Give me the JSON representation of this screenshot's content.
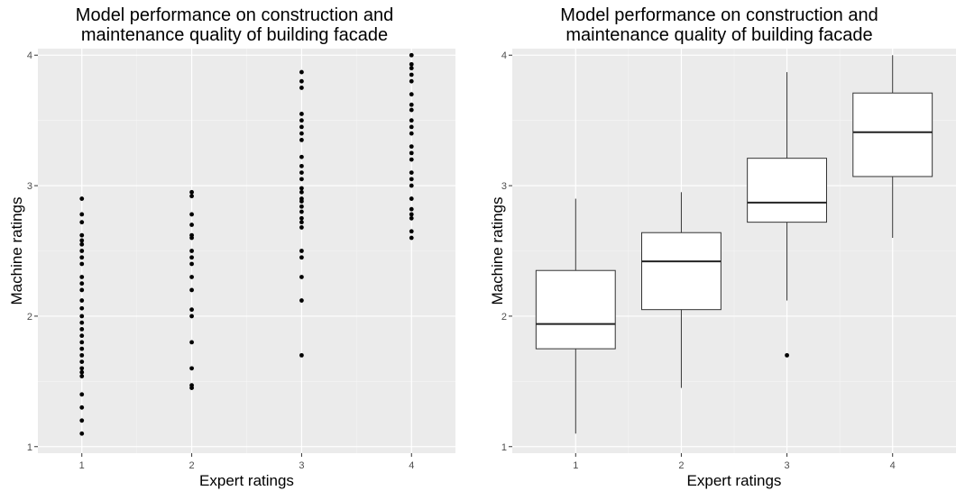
{
  "chart_data": [
    {
      "type": "scatter",
      "title": [
        "Model performance on construction and",
        "maintenance quality of building facade"
      ],
      "xlabel": "Expert ratings",
      "ylabel": "Machine ratings",
      "xlim": [
        0.6,
        4.4
      ],
      "ylim": [
        0.95,
        4.05
      ],
      "xticks": [
        1,
        2,
        3,
        4
      ],
      "yticks": [
        1,
        2,
        3,
        4
      ],
      "grid": true,
      "points": [
        [
          1,
          2.9
        ],
        [
          1,
          2.78
        ],
        [
          1,
          2.72
        ],
        [
          1,
          2.62
        ],
        [
          1,
          2.58
        ],
        [
          1,
          2.55
        ],
        [
          1,
          2.5
        ],
        [
          1,
          2.45
        ],
        [
          1,
          2.4
        ],
        [
          1,
          2.3
        ],
        [
          1,
          2.25
        ],
        [
          1,
          2.2
        ],
        [
          1,
          2.12
        ],
        [
          1,
          2.06
        ],
        [
          1,
          2.0
        ],
        [
          1,
          1.95
        ],
        [
          1,
          1.9
        ],
        [
          1,
          1.85
        ],
        [
          1,
          1.8
        ],
        [
          1,
          1.75
        ],
        [
          1,
          1.7
        ],
        [
          1,
          1.65
        ],
        [
          1,
          1.6
        ],
        [
          1,
          1.57
        ],
        [
          1,
          1.54
        ],
        [
          1,
          1.4
        ],
        [
          1,
          1.3
        ],
        [
          1,
          1.2
        ],
        [
          1,
          1.1
        ],
        [
          2,
          2.95
        ],
        [
          2,
          2.92
        ],
        [
          2,
          2.78
        ],
        [
          2,
          2.7
        ],
        [
          2,
          2.62
        ],
        [
          2,
          2.6
        ],
        [
          2,
          2.5
        ],
        [
          2,
          2.45
        ],
        [
          2,
          2.4
        ],
        [
          2,
          2.3
        ],
        [
          2,
          2.2
        ],
        [
          2,
          2.05
        ],
        [
          2,
          2.0
        ],
        [
          2,
          1.8
        ],
        [
          2,
          1.6
        ],
        [
          2,
          1.47
        ],
        [
          2,
          1.45
        ],
        [
          3,
          3.87
        ],
        [
          3,
          3.8
        ],
        [
          3,
          3.75
        ],
        [
          3,
          3.55
        ],
        [
          3,
          3.5
        ],
        [
          3,
          3.45
        ],
        [
          3,
          3.4
        ],
        [
          3,
          3.35
        ],
        [
          3,
          3.22
        ],
        [
          3,
          3.15
        ],
        [
          3,
          3.1
        ],
        [
          3,
          3.05
        ],
        [
          3,
          2.98
        ],
        [
          3,
          2.95
        ],
        [
          3,
          2.9
        ],
        [
          3,
          2.88
        ],
        [
          3,
          2.84
        ],
        [
          3,
          2.8
        ],
        [
          3,
          2.75
        ],
        [
          3,
          2.72
        ],
        [
          3,
          2.68
        ],
        [
          3,
          2.5
        ],
        [
          3,
          2.45
        ],
        [
          3,
          2.3
        ],
        [
          3,
          2.12
        ],
        [
          3,
          1.7
        ],
        [
          4,
          4.0
        ],
        [
          4,
          3.93
        ],
        [
          4,
          3.9
        ],
        [
          4,
          3.85
        ],
        [
          4,
          3.8
        ],
        [
          4,
          3.7
        ],
        [
          4,
          3.62
        ],
        [
          4,
          3.58
        ],
        [
          4,
          3.5
        ],
        [
          4,
          3.45
        ],
        [
          4,
          3.4
        ],
        [
          4,
          3.3
        ],
        [
          4,
          3.25
        ],
        [
          4,
          3.2
        ],
        [
          4,
          3.1
        ],
        [
          4,
          3.05
        ],
        [
          4,
          3.0
        ],
        [
          4,
          2.9
        ],
        [
          4,
          2.82
        ],
        [
          4,
          2.78
        ],
        [
          4,
          2.75
        ],
        [
          4,
          2.65
        ],
        [
          4,
          2.6
        ]
      ]
    },
    {
      "type": "box",
      "title": [
        "Model performance on construction and",
        "maintenance quality of building facade"
      ],
      "xlabel": "Expert ratings",
      "ylabel": "Machine ratings",
      "xlim": [
        0.4,
        4.6
      ],
      "ylim": [
        0.95,
        4.05
      ],
      "xticks": [
        1,
        2,
        3,
        4
      ],
      "yticks": [
        1,
        2,
        3,
        4
      ],
      "grid": true,
      "boxes": [
        {
          "category": 1,
          "lower_whisker": 1.1,
          "q1": 1.75,
          "median": 1.94,
          "q3": 2.35,
          "upper_whisker": 2.9,
          "outliers": []
        },
        {
          "category": 2,
          "lower_whisker": 1.45,
          "q1": 2.05,
          "median": 2.42,
          "q3": 2.64,
          "upper_whisker": 2.95,
          "outliers": []
        },
        {
          "category": 3,
          "lower_whisker": 2.12,
          "q1": 2.72,
          "median": 2.87,
          "q3": 3.21,
          "upper_whisker": 3.87,
          "outliers": [
            1.7
          ]
        },
        {
          "category": 4,
          "lower_whisker": 2.6,
          "q1": 3.07,
          "median": 3.41,
          "q3": 3.71,
          "upper_whisker": 4.0,
          "outliers": []
        }
      ]
    }
  ]
}
